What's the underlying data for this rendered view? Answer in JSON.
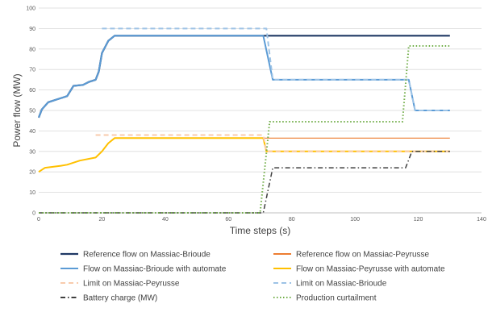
{
  "chart_data": {
    "type": "line",
    "title": "",
    "xlabel": "Time steps (s)",
    "ylabel": "Power flow (MW)",
    "xlim": [
      0,
      140
    ],
    "ylim": [
      0,
      100
    ],
    "xticks": [
      "0",
      "20",
      "40",
      "60",
      "80",
      "100",
      "120",
      "140"
    ],
    "yticks": [
      "0",
      "10",
      "20",
      "30",
      "40",
      "50",
      "60",
      "70",
      "80",
      "90",
      "100"
    ],
    "grid": true,
    "legend_position": "bottom",
    "series": [
      {
        "name": "Reference flow on Massiac-Brioude",
        "color": "#1f3864",
        "dash": "solid",
        "width": 2.2,
        "x": [
          0,
          1,
          3,
          6,
          8,
          9,
          11,
          14,
          16,
          18,
          19,
          20,
          22,
          24,
          130
        ],
        "y": [
          46.5,
          50.5,
          54,
          55.5,
          56.5,
          57,
          62,
          62.5,
          64,
          65,
          69,
          78,
          84,
          86.5,
          86.5
        ]
      },
      {
        "name": "Reference flow on Massiac-Peyrusse",
        "color": "#ed7d31",
        "dash": "solid",
        "width": 1.2,
        "x": [
          0,
          2,
          7,
          9,
          13,
          18,
          20,
          22,
          24,
          130
        ],
        "y": [
          20,
          22,
          23,
          23.5,
          25.5,
          27,
          30,
          34,
          36.5,
          36.5
        ]
      },
      {
        "name": "Flow on Massiac-Brioude with automate",
        "color": "#5b9bd5",
        "dash": "solid",
        "width": 2,
        "x": [
          0,
          1,
          3,
          6,
          8,
          9,
          11,
          14,
          16,
          18,
          19,
          20,
          22,
          24,
          71,
          74,
          117,
          119,
          130
        ],
        "y": [
          46.5,
          50.5,
          54,
          55.5,
          56.5,
          57,
          62,
          62.5,
          64,
          65,
          69,
          78,
          84,
          86.5,
          86.5,
          65,
          65,
          50,
          50
        ]
      },
      {
        "name": "Flow on Massiac-Peyrusse with automate",
        "color": "#ffc000",
        "dash": "solid",
        "width": 2,
        "x": [
          0,
          2,
          7,
          9,
          13,
          18,
          20,
          22,
          24,
          71,
          72,
          130
        ],
        "y": [
          20,
          22,
          23,
          23.5,
          25.5,
          27,
          30,
          34,
          36.5,
          36.5,
          30,
          30
        ]
      },
      {
        "name": "Limit on Massiac-Peyrusse",
        "color": "#f8cbad",
        "dash": "6,4",
        "width": 2,
        "x": [
          18,
          71,
          72,
          130
        ],
        "y": [
          38,
          38,
          30,
          30
        ]
      },
      {
        "name": "Limit on Massiac-Brioude",
        "color": "#9dc3e6",
        "dash": "6,4",
        "width": 2,
        "x": [
          20,
          72,
          74,
          117,
          119,
          130
        ],
        "y": [
          90,
          90,
          65,
          65,
          50,
          50
        ]
      },
      {
        "name": "Battery charge (MW)",
        "color": "#404040",
        "dash": "6,3,1.5,3",
        "width": 1.5,
        "x": [
          0,
          71,
          74,
          116,
          118,
          130
        ],
        "y": [
          0,
          0,
          22,
          22,
          30,
          30
        ]
      },
      {
        "name": "Production curtailment",
        "color": "#70ad47",
        "dash": "1.5,2.5",
        "width": 2,
        "x": [
          0,
          70,
          73,
          115,
          117,
          130
        ],
        "y": [
          0,
          0,
          44.5,
          44.5,
          81.5,
          81.5
        ]
      }
    ],
    "legend_order": [
      0,
      1,
      2,
      3,
      4,
      5,
      6,
      7
    ]
  }
}
